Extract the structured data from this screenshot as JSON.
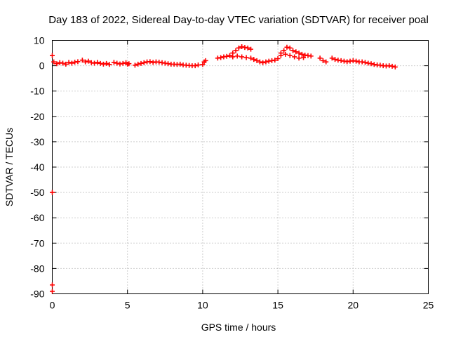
{
  "chart_data": {
    "type": "scatter",
    "title": "Day 183 of 2022, Sidereal Day-to-day VTEC variation (SDTVAR) for receiver poal",
    "xlabel": "GPS time / hours",
    "ylabel": "SDTVAR / TECUs",
    "xlim": [
      0,
      25
    ],
    "ylim": [
      -90,
      10
    ],
    "xticks": [
      0,
      5,
      10,
      15,
      20,
      25
    ],
    "xtick_labels": [
      "0",
      "5",
      "10",
      "15",
      "20",
      "25"
    ],
    "yticks": [
      10,
      0,
      -10,
      -20,
      -30,
      -40,
      -50,
      -60,
      -70,
      -80,
      -90
    ],
    "ytick_labels": [
      "10",
      "0",
      "-10",
      "-20",
      "-30",
      "-40",
      "-50",
      "-60",
      "-70",
      "-80",
      "-90"
    ],
    "grid": true,
    "marker": "+",
    "color": "#ff0000",
    "series": [
      {
        "name": "SDTVAR",
        "points": [
          [
            0.1,
            1.5
          ],
          [
            0.3,
            0.8
          ],
          [
            0.5,
            1.2
          ],
          [
            0.7,
            1.0
          ],
          [
            0.9,
            0.6
          ],
          [
            1.1,
            1.3
          ],
          [
            1.3,
            1.0
          ],
          [
            1.5,
            1.4
          ],
          [
            1.7,
            1.6
          ],
          [
            2.0,
            2.2
          ],
          [
            2.2,
            1.5
          ],
          [
            2.4,
            1.8
          ],
          [
            2.6,
            1.2
          ],
          [
            2.8,
            1.0
          ],
          [
            3.0,
            1.3
          ],
          [
            3.2,
            0.9
          ],
          [
            3.4,
            0.6
          ],
          [
            3.6,
            0.9
          ],
          [
            3.8,
            0.5
          ],
          [
            4.1,
            1.3
          ],
          [
            4.3,
            1.0
          ],
          [
            4.5,
            0.7
          ],
          [
            4.7,
            0.9
          ],
          [
            4.9,
            1.2
          ],
          [
            5.0,
            0.6
          ],
          [
            5.1,
            0.8
          ],
          [
            5.5,
            0.2
          ],
          [
            5.7,
            0.6
          ],
          [
            5.9,
            0.9
          ],
          [
            6.1,
            1.2
          ],
          [
            6.3,
            1.5
          ],
          [
            6.5,
            1.6
          ],
          [
            6.7,
            1.3
          ],
          [
            6.9,
            1.5
          ],
          [
            7.1,
            1.4
          ],
          [
            7.3,
            1.2
          ],
          [
            7.5,
            1.0
          ],
          [
            7.7,
            0.8
          ],
          [
            7.9,
            0.6
          ],
          [
            8.1,
            0.6
          ],
          [
            8.3,
            0.5
          ],
          [
            8.5,
            0.6
          ],
          [
            8.7,
            0.3
          ],
          [
            8.9,
            0.2
          ],
          [
            9.1,
            0.1
          ],
          [
            9.3,
            0.0
          ],
          [
            9.5,
            0.0
          ],
          [
            9.7,
            0.3
          ],
          [
            10.0,
            0.5
          ],
          [
            10.1,
            1.5
          ],
          [
            10.2,
            2.0
          ],
          [
            11.0,
            3.0
          ],
          [
            11.2,
            3.2
          ],
          [
            11.4,
            3.5
          ],
          [
            11.6,
            3.7
          ],
          [
            11.8,
            4.0
          ],
          [
            12.0,
            5.0
          ],
          [
            12.2,
            6.0
          ],
          [
            12.4,
            7.0
          ],
          [
            12.6,
            7.5
          ],
          [
            12.8,
            7.2
          ],
          [
            13.0,
            7.0
          ],
          [
            13.2,
            6.5
          ],
          [
            12.0,
            3.5
          ],
          [
            12.3,
            3.8
          ],
          [
            12.6,
            3.5
          ],
          [
            12.9,
            3.2
          ],
          [
            13.2,
            3.0
          ],
          [
            13.4,
            2.5
          ],
          [
            13.6,
            2.0
          ],
          [
            13.8,
            1.5
          ],
          [
            14.0,
            1.2
          ],
          [
            14.2,
            1.5
          ],
          [
            14.4,
            1.8
          ],
          [
            14.6,
            2.0
          ],
          [
            14.8,
            2.2
          ],
          [
            15.0,
            2.8
          ],
          [
            15.2,
            4.0
          ],
          [
            15.4,
            6.0
          ],
          [
            15.6,
            7.3
          ],
          [
            15.8,
            7.0
          ],
          [
            16.0,
            6.0
          ],
          [
            16.2,
            5.5
          ],
          [
            16.4,
            5.0
          ],
          [
            16.6,
            4.5
          ],
          [
            16.8,
            4.2
          ],
          [
            17.0,
            4.0
          ],
          [
            17.2,
            3.8
          ],
          [
            15.2,
            5.0
          ],
          [
            15.5,
            4.5
          ],
          [
            15.8,
            4.0
          ],
          [
            16.1,
            3.5
          ],
          [
            16.4,
            3.0
          ],
          [
            16.7,
            3.2
          ],
          [
            17.8,
            3.0
          ],
          [
            18.0,
            2.0
          ],
          [
            18.2,
            1.5
          ],
          [
            18.6,
            3.0
          ],
          [
            18.8,
            2.5
          ],
          [
            19.0,
            2.2
          ],
          [
            19.2,
            2.0
          ],
          [
            19.4,
            1.8
          ],
          [
            19.6,
            1.6
          ],
          [
            19.8,
            1.8
          ],
          [
            20.0,
            2.0
          ],
          [
            20.2,
            1.8
          ],
          [
            20.4,
            1.5
          ],
          [
            20.6,
            1.5
          ],
          [
            20.8,
            1.3
          ],
          [
            21.0,
            1.0
          ],
          [
            21.2,
            0.8
          ],
          [
            21.4,
            0.5
          ],
          [
            21.6,
            0.3
          ],
          [
            21.8,
            0.2
          ],
          [
            22.0,
            0.0
          ],
          [
            22.2,
            -0.1
          ],
          [
            22.4,
            0.0
          ],
          [
            22.6,
            -0.2
          ],
          [
            22.8,
            -0.5
          ],
          [
            0.0,
            4.0
          ],
          [
            0.0,
            -50.0
          ],
          [
            0.0,
            -86.5
          ],
          [
            0.0,
            -89.0
          ]
        ]
      }
    ]
  }
}
